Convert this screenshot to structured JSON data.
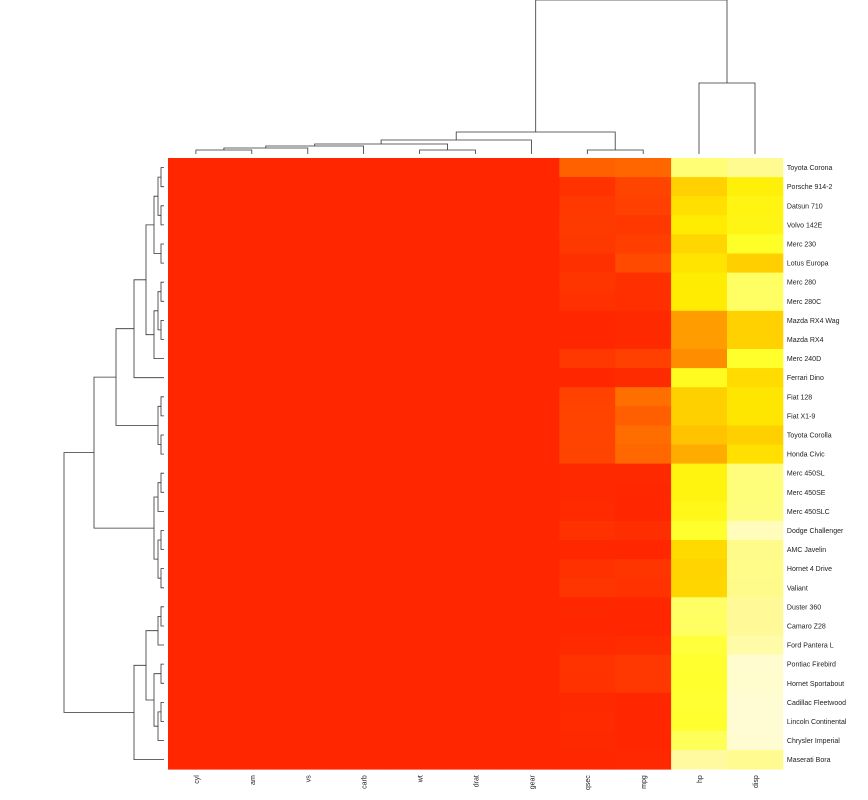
{
  "chart_data": {
    "type": "heatmap",
    "title": "",
    "xlabel": "",
    "ylabel": "",
    "columns": [
      "cyl",
      "am",
      "vs",
      "carb",
      "wt",
      "drat",
      "gear",
      "qsec",
      "mpg",
      "hp",
      "disp"
    ],
    "rows": [
      "Toyota Corona",
      "Porsche 914-2",
      "Datsun 710",
      "Volvo 142E",
      "Merc 230",
      "Lotus Europa",
      "Merc 280",
      "Merc 280C",
      "Mazda RX4 Wag",
      "Mazda RX4",
      "Merc 240D",
      "Ferrari Dino",
      "Fiat 128",
      "Fiat X1-9",
      "Toyota Corolla",
      "Honda Civic",
      "Merc 450SL",
      "Merc 450SE",
      "Merc 450SLC",
      "Dodge Challenger",
      "AMC Javelin",
      "Hornet 4 Drive",
      "Valiant",
      "Duster 360",
      "Camaro Z28",
      "Ford Pantera L",
      "Pontiac Firebird",
      "Hornet Sportabout",
      "Cadillac Fleetwood",
      "Lincoln Continental",
      "Chrysler Imperial",
      "Maserati Bora"
    ],
    "values": [
      [
        0.0083,
        0.0,
        0.0083,
        0.0083,
        0.0083,
        0.0124,
        0.0124,
        0.0708,
        0.0757,
        0.3429,
        0.4295
      ],
      [
        0.0074,
        0.0018,
        0.0,
        0.0037,
        0.0039,
        0.008,
        0.0092,
        0.0309,
        0.0481,
        0.1691,
        0.2215
      ],
      [
        0.0083,
        0.0019,
        0.0019,
        0.0019,
        0.005,
        0.0083,
        0.0083,
        0.0374,
        0.0441,
        0.1927,
        0.2328
      ],
      [
        0.0082,
        0.0019,
        0.0019,
        0.0039,
        0.006,
        0.0074,
        0.0082,
        0.0385,
        0.0366,
        0.2125,
        0.2358
      ],
      [
        0.0074,
        0.0,
        0.0018,
        0.0037,
        0.0062,
        0.0069,
        0.0074,
        0.0367,
        0.0422,
        0.1758,
        0.26
      ],
      [
        0.007,
        0.0018,
        0.0018,
        0.0035,
        0.0027,
        0.0066,
        0.0088,
        0.0298,
        0.0533,
        0.1993,
        0.1674
      ],
      [
        0.0099,
        0.0,
        0.0015,
        0.0051,
        0.007,
        0.0064,
        0.005,
        0.0337,
        0.0297,
        0.2132,
        0.3102
      ],
      [
        0.0099,
        0.0,
        0.0015,
        0.0051,
        0.007,
        0.0064,
        0.005,
        0.0302,
        0.0287,
        0.2123,
        0.3102
      ],
      [
        0.0063,
        0.0011,
        0.0,
        0.0043,
        0.003,
        0.0041,
        0.0043,
        0.0181,
        0.0224,
        0.1177,
        0.1692
      ],
      [
        0.0063,
        0.0011,
        0.0,
        0.0043,
        0.0028,
        0.0041,
        0.0043,
        0.0174,
        0.0224,
        0.1177,
        0.1692
      ],
      [
        0.0076,
        0.0,
        0.0025,
        0.0038,
        0.0061,
        0.0064,
        0.0058,
        0.0356,
        0.0444,
        0.1054,
        0.263
      ],
      [
        0.0076,
        0.0013,
        0.0,
        0.0063,
        0.0035,
        0.0046,
        0.0063,
        0.0195,
        0.025,
        0.2483,
        0.1842
      ],
      [
        0.0102,
        0.0025,
        0.0025,
        0.0026,
        0.005,
        0.0106,
        0.0102,
        0.0467,
        0.0824,
        0.1682,
        0.2018
      ],
      [
        0.0102,
        0.0025,
        0.0025,
        0.0026,
        0.0048,
        0.0106,
        0.0102,
        0.0482,
        0.0702,
        0.1682,
        0.2018
      ],
      [
        0.0095,
        0.0024,
        0.0024,
        0.0024,
        0.0043,
        0.01,
        0.0095,
        0.0468,
        0.0804,
        0.1549,
        0.1676
      ],
      [
        0.0101,
        0.0025,
        0.0025,
        0.0051,
        0.0041,
        0.0099,
        0.0101,
        0.0469,
        0.0769,
        0.1323,
        0.1918
      ],
      [
        0.0104,
        0.0,
        0.0,
        0.0039,
        0.0049,
        0.004,
        0.0039,
        0.0227,
        0.0225,
        0.2305,
        0.3634
      ],
      [
        0.0101,
        0.0,
        0.0,
        0.0038,
        0.0051,
        0.0039,
        0.0038,
        0.022,
        0.0208,
        0.2298,
        0.3546
      ],
      [
        0.0107,
        0.0,
        0.0,
        0.004,
        0.0051,
        0.0041,
        0.004,
        0.024,
        0.0203,
        0.2413,
        0.3683
      ],
      [
        0.0144,
        0.0,
        0.0,
        0.0036,
        0.0061,
        0.005,
        0.0054,
        0.03,
        0.0279,
        0.2645,
        0.6003
      ],
      [
        0.0097,
        0.0,
        0.0,
        0.0024,
        0.0042,
        0.0038,
        0.0036,
        0.021,
        0.0184,
        0.1832,
        0.414
      ],
      [
        0.0095,
        0.0,
        0.0016,
        0.0016,
        0.0051,
        0.0049,
        0.0047,
        0.0307,
        0.0338,
        0.1739,
        0.4077
      ],
      [
        0.0102,
        0.0,
        0.0017,
        0.0017,
        0.0058,
        0.0047,
        0.0051,
        0.0342,
        0.0308,
        0.1786,
        0.4113
      ],
      [
        0.0103,
        0.0,
        0.0,
        0.0051,
        0.0046,
        0.004,
        0.0038,
        0.0206,
        0.0184,
        0.312,
        0.4557
      ],
      [
        0.0102,
        0.0,
        0.0,
        0.0051,
        0.0047,
        0.0048,
        0.0039,
        0.0192,
        0.0168,
        0.309,
        0.4555
      ],
      [
        0.0131,
        0.0016,
        0.0,
        0.0065,
        0.0052,
        0.0069,
        0.0082,
        0.0238,
        0.0259,
        0.2766,
        0.5197
      ],
      [
        0.0151,
        0.0,
        0.0,
        0.0041,
        0.0073,
        0.0056,
        0.0057,
        0.0324,
        0.0363,
        0.267,
        0.7547
      ],
      [
        0.0154,
        0.0,
        0.0,
        0.0038,
        0.0063,
        0.0057,
        0.0057,
        0.0317,
        0.0357,
        0.2642,
        0.7229
      ],
      [
        0.0106,
        0.0,
        0.0,
        0.0052,
        0.0069,
        0.0035,
        0.0039,
        0.023,
        0.0135,
        0.2674,
        0.816
      ],
      [
        0.0106,
        0.0,
        0.0,
        0.0053,
        0.0072,
        0.0039,
        0.0039,
        0.0236,
        0.0135,
        0.2671,
        0.8152
      ],
      [
        0.0105,
        0.0,
        0.0,
        0.0052,
        0.007,
        0.0043,
        0.004,
        0.0228,
        0.0193,
        0.3025,
        0.7908
      ],
      [
        0.0115,
        0.0014,
        0.0,
        0.0115,
        0.0051,
        0.0053,
        0.0072,
        0.0208,
        0.0216,
        0.4847,
        0.4323
      ]
    ],
    "colors": {
      "low": "#ff2600",
      "mid_low": "#ff4500",
      "mid": "#ff9f00",
      "mid_high": "#ffe100",
      "high": "#ffff80",
      "top": "#fffad0"
    },
    "legend": "none",
    "grid": false
  }
}
